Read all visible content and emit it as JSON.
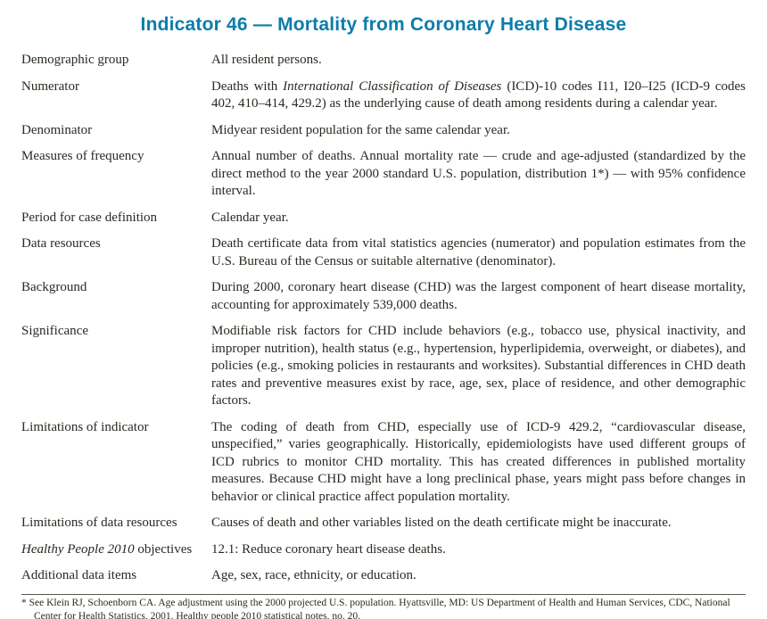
{
  "title": "Indicator 46 — Mortality from Coronary Heart Disease",
  "colors": {
    "title_accent": "#0b7dab",
    "body_text": "#2a2a22"
  },
  "rows": [
    {
      "label": "Demographic group",
      "value": "All resident persons."
    },
    {
      "label": "Numerator",
      "value_pre": "Deaths with ",
      "value_italic": "International Classification of Diseases",
      "value_post": " (ICD)-10 codes I11, I20–I25 (ICD-9 codes 402, 410–414, 429.2) as the underlying cause of death among residents during a calendar year."
    },
    {
      "label": "Denominator",
      "value": "Midyear resident population for the same calendar year."
    },
    {
      "label": "Measures of frequency",
      "value": "Annual number of deaths. Annual mortality rate — crude and age-adjusted (standardized by the direct method to the year 2000 standard U.S. population, distribution 1*) — with 95% confidence interval."
    },
    {
      "label": "Period for case definition",
      "value": "Calendar year."
    },
    {
      "label": "Data resources",
      "value": "Death certificate data from vital statistics agencies (numerator) and population estimates from the U.S. Bureau of the Census or suitable alternative (denominator)."
    },
    {
      "label": "Background",
      "value": "During 2000, coronary heart disease (CHD) was the largest component of heart disease mortality, accounting for approximately 539,000 deaths."
    },
    {
      "label": "Significance",
      "value": "Modifiable risk factors for CHD include behaviors (e.g., tobacco use, physical inactivity, and improper nutrition), health status (e.g., hypertension, hyperlipidemia, overweight, or diabetes), and policies (e.g., smoking policies in restaurants and worksites). Substantial differences in CHD death rates and preventive measures exist by race, age, sex, place of residence, and other demographic factors."
    },
    {
      "label": "Limitations of indicator",
      "value": "The coding of death from CHD, especially use of ICD-9 429.2, “cardiovascular disease, unspecified,” varies geographically. Historically, epidemiologists have used different groups of ICD rubrics to monitor CHD mortality. This has created differences in published mortality measures. Because CHD might have a long preclinical phase, years might pass before changes in behavior or clinical practice affect population mortality."
    },
    {
      "label": "Limitations of data resources",
      "value": "Causes of death and other variables listed on the death certificate might be inaccurate."
    },
    {
      "label_italic": "Healthy People 2010",
      "label_post": " objectives",
      "value": "12.1: Reduce coronary heart disease deaths."
    },
    {
      "label": "Additional data items",
      "value": "Age, sex, race, ethnicity, or education."
    }
  ],
  "footnote": {
    "text": "* See Klein RJ, Schoenborn CA. Age adjustment using the 2000 projected U.S. population. Hyattsville, MD: US Department of Health and Human Services, CDC, National Center for Health Statistics, 2001. Healthy people 2010 statistical notes, no. 20."
  }
}
